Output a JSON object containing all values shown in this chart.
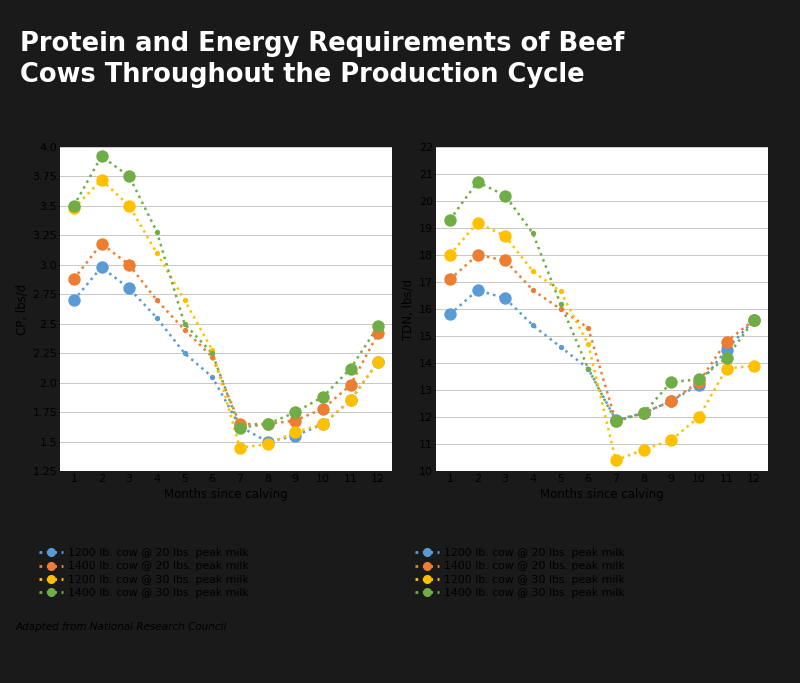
{
  "title": "Protein and Energy Requirements of Beef\nCows Throughout the Production Cycle",
  "subtitle": "Adapted from National Research Council",
  "months": [
    1,
    2,
    3,
    4,
    5,
    6,
    7,
    8,
    9,
    10,
    11,
    12
  ],
  "cp_series": {
    "1200_20": [
      2.7,
      2.98,
      2.8,
      2.55,
      2.25,
      2.05,
      1.63,
      1.5,
      1.55,
      1.65,
      1.85,
      2.18
    ],
    "1400_20": [
      2.88,
      3.18,
      3.0,
      2.7,
      2.45,
      2.22,
      1.65,
      1.65,
      1.68,
      1.78,
      1.98,
      2.42
    ],
    "1200_30": [
      3.48,
      3.72,
      3.5,
      3.1,
      2.7,
      2.28,
      1.45,
      1.48,
      1.58,
      1.65,
      1.85,
      2.18
    ],
    "1400_30": [
      3.5,
      3.92,
      3.75,
      3.28,
      2.5,
      2.25,
      1.62,
      1.65,
      1.75,
      1.88,
      2.12,
      2.48
    ]
  },
  "tdn_series": {
    "1200_20": [
      15.8,
      16.7,
      16.4,
      15.4,
      14.6,
      13.8,
      11.9,
      12.15,
      12.6,
      13.2,
      14.5,
      15.6
    ],
    "1400_20": [
      17.1,
      18.0,
      17.8,
      16.7,
      16.0,
      15.3,
      11.85,
      12.15,
      12.6,
      13.3,
      14.8,
      15.6
    ],
    "1200_30": [
      18.0,
      19.2,
      18.7,
      17.4,
      16.65,
      14.7,
      10.4,
      10.8,
      11.15,
      12.0,
      13.8,
      13.9
    ],
    "1400_30": [
      19.3,
      20.7,
      20.2,
      18.8,
      16.2,
      13.8,
      11.85,
      12.15,
      13.3,
      13.4,
      14.2,
      15.6
    ]
  },
  "colors": {
    "1200_20": "#5B9BD5",
    "1400_20": "#ED7D31",
    "1200_30": "#FFC000",
    "1400_30": "#70AD47"
  },
  "labels": {
    "1200_20": "1200 lb. cow @ 20 lbs. peak milk",
    "1400_20": "1400 lb. cow @ 20 lbs. peak milk",
    "1200_30": "1200 lb. cow @ 30 lbs. peak milk",
    "1400_30": "1400 lb. cow @ 30 lbs. peak milk"
  },
  "cp_ylim": [
    1.25,
    4.0
  ],
  "cp_yticks": [
    1.25,
    1.5,
    1.75,
    2.0,
    2.25,
    2.5,
    2.75,
    3.0,
    3.25,
    3.5,
    3.75,
    4.0
  ],
  "tdn_ylim": [
    10,
    22
  ],
  "tdn_yticks": [
    10,
    11,
    12,
    13,
    14,
    15,
    16,
    17,
    18,
    19,
    20,
    21,
    22
  ],
  "xlabel": "Months since calving",
  "cp_ylabel": "CP, lbs/d",
  "tdn_ylabel": "TDN, lbs/d",
  "outer_bg": "#1A1A1A",
  "panel_bg": "#F0F0F0",
  "plot_bg": "#FFFFFF",
  "title_color": "#FFFFFF",
  "grid_color": "#C8C8C8",
  "large_dot_indices": [
    0,
    1,
    2,
    6,
    7,
    8,
    9,
    10,
    11
  ],
  "small_dot_size": 15,
  "large_dot_size": 80,
  "line_width": 1.8
}
